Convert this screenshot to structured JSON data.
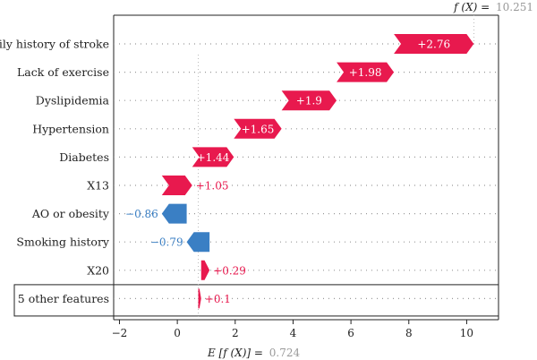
{
  "chart_data": {
    "type": "waterfall",
    "base_value": 0.724,
    "output_value": 10.251,
    "base_label": "E [f (X)] = 0.724",
    "base_label_prefix": "E [f (X)] =",
    "base_label_value": "0.724",
    "output_label_prefix": "f (X) =",
    "output_label_value": "10.251",
    "features": [
      {
        "name": "Family history of stroke",
        "value": 2.76,
        "label": "+2.76"
      },
      {
        "name": "Lack of exercise",
        "value": 1.98,
        "label": "+1.98"
      },
      {
        "name": "Dyslipidemia",
        "value": 1.9,
        "label": "+1.9"
      },
      {
        "name": "Hypertension",
        "value": 1.65,
        "label": "+1.65"
      },
      {
        "name": "Diabetes",
        "value": 1.44,
        "label": "+1.44"
      },
      {
        "name": "X13",
        "value": 1.05,
        "label": "+1.05"
      },
      {
        "name": "AO or obesity",
        "value": -0.86,
        "label": "−0.86"
      },
      {
        "name": "Smoking history",
        "value": -0.79,
        "label": "−0.79"
      },
      {
        "name": "X20",
        "value": 0.29,
        "label": "+0.29"
      },
      {
        "name": "5 other features",
        "value": 0.1,
        "label": "+0.1"
      }
    ],
    "xlim": [
      -2.2,
      11.1
    ],
    "xticks": [
      -2,
      0,
      2,
      4,
      6,
      8,
      10
    ],
    "xtick_labels": [
      "−2",
      "0",
      "2",
      "4",
      "6",
      "8",
      "10"
    ],
    "colors": {
      "positive": "#e8194e",
      "negative": "#3a7fc4",
      "annotation": "#999999"
    }
  }
}
